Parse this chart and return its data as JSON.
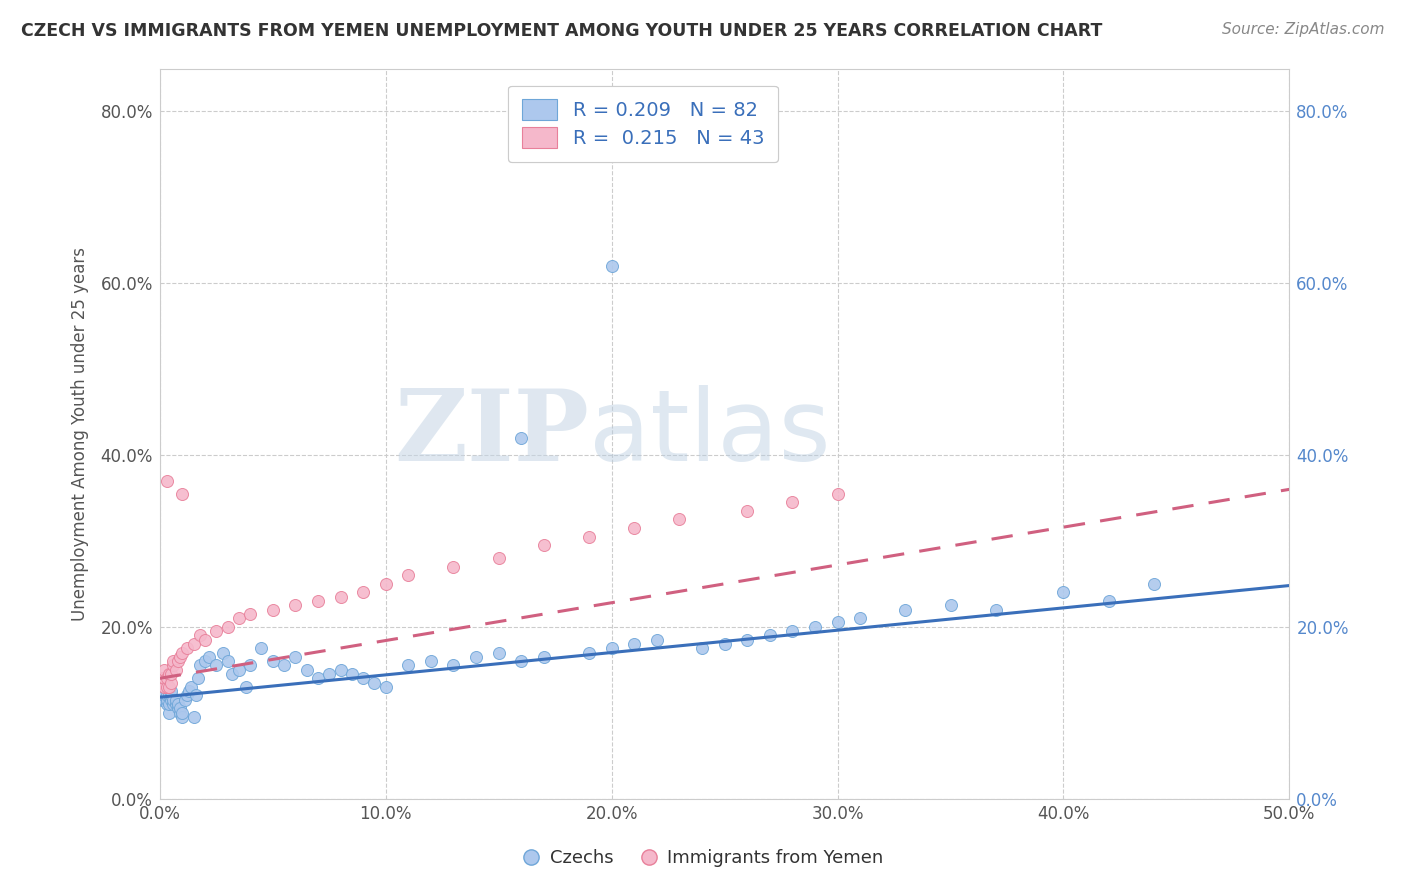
{
  "title": "CZECH VS IMMIGRANTS FROM YEMEN UNEMPLOYMENT AMONG YOUTH UNDER 25 YEARS CORRELATION CHART",
  "source": "Source: ZipAtlas.com",
  "ylabel": "Unemployment Among Youth under 25 years",
  "xlim": [
    0.0,
    0.5
  ],
  "ylim": [
    0.0,
    0.85
  ],
  "x_tick_vals": [
    0.0,
    0.1,
    0.2,
    0.3,
    0.4,
    0.5
  ],
  "x_tick_labels": [
    "0.0%",
    "10.0%",
    "20.0%",
    "30.0%",
    "40.0%",
    "50.0%"
  ],
  "y_tick_vals": [
    0.0,
    0.2,
    0.4,
    0.6,
    0.8
  ],
  "y_tick_labels": [
    "0.0%",
    "20.0%",
    "40.0%",
    "60.0%",
    "80.0%"
  ],
  "czech_color": "#adc8ed",
  "czech_edge": "#6ea6d8",
  "yemen_color": "#f5b8cb",
  "yemen_edge": "#e8809a",
  "trendline_czech_color": "#3a6fba",
  "trendline_yemen_color": "#d06080",
  "watermark_text": "ZIP",
  "watermark_text2": "atlas",
  "watermark_color": "#c8d8e8",
  "background_color": "#ffffff",
  "grid_color": "#cccccc",
  "right_axis_color": "#5588cc",
  "legend_color": "#3a6fba",
  "title_color": "#333333",
  "source_color": "#888888",
  "ylabel_color": "#555555",
  "bottom_label_color": "#333333",
  "czech_x": [
    0.001,
    0.001,
    0.001,
    0.002,
    0.002,
    0.002,
    0.002,
    0.003,
    0.003,
    0.003,
    0.004,
    0.004,
    0.004,
    0.005,
    0.005,
    0.005,
    0.006,
    0.006,
    0.007,
    0.007,
    0.008,
    0.008,
    0.009,
    0.009,
    0.01,
    0.01,
    0.011,
    0.012,
    0.013,
    0.014,
    0.015,
    0.016,
    0.017,
    0.018,
    0.02,
    0.022,
    0.025,
    0.028,
    0.03,
    0.032,
    0.035,
    0.038,
    0.04,
    0.045,
    0.05,
    0.055,
    0.06,
    0.065,
    0.07,
    0.075,
    0.08,
    0.085,
    0.09,
    0.095,
    0.1,
    0.11,
    0.12,
    0.13,
    0.14,
    0.15,
    0.16,
    0.17,
    0.19,
    0.2,
    0.21,
    0.22,
    0.24,
    0.25,
    0.26,
    0.27,
    0.28,
    0.29,
    0.3,
    0.31,
    0.33,
    0.35,
    0.37,
    0.4,
    0.42,
    0.44,
    0.2,
    0.16
  ],
  "czech_y": [
    0.115,
    0.125,
    0.13,
    0.115,
    0.12,
    0.125,
    0.13,
    0.11,
    0.115,
    0.12,
    0.1,
    0.11,
    0.12,
    0.115,
    0.12,
    0.125,
    0.11,
    0.115,
    0.11,
    0.115,
    0.105,
    0.11,
    0.1,
    0.105,
    0.095,
    0.1,
    0.115,
    0.12,
    0.125,
    0.13,
    0.095,
    0.12,
    0.14,
    0.155,
    0.16,
    0.165,
    0.155,
    0.17,
    0.16,
    0.145,
    0.15,
    0.13,
    0.155,
    0.175,
    0.16,
    0.155,
    0.165,
    0.15,
    0.14,
    0.145,
    0.15,
    0.145,
    0.14,
    0.135,
    0.13,
    0.155,
    0.16,
    0.155,
    0.165,
    0.17,
    0.16,
    0.165,
    0.17,
    0.175,
    0.18,
    0.185,
    0.175,
    0.18,
    0.185,
    0.19,
    0.195,
    0.2,
    0.205,
    0.21,
    0.22,
    0.225,
    0.22,
    0.24,
    0.23,
    0.25,
    0.62,
    0.42
  ],
  "yemen_x": [
    0.001,
    0.001,
    0.002,
    0.002,
    0.002,
    0.003,
    0.003,
    0.004,
    0.004,
    0.005,
    0.005,
    0.006,
    0.006,
    0.007,
    0.008,
    0.009,
    0.01,
    0.012,
    0.015,
    0.018,
    0.02,
    0.025,
    0.03,
    0.035,
    0.04,
    0.05,
    0.06,
    0.07,
    0.08,
    0.09,
    0.1,
    0.11,
    0.13,
    0.15,
    0.17,
    0.19,
    0.21,
    0.23,
    0.26,
    0.28,
    0.3,
    0.01,
    0.003
  ],
  "yemen_y": [
    0.135,
    0.14,
    0.13,
    0.14,
    0.15,
    0.13,
    0.14,
    0.13,
    0.145,
    0.135,
    0.145,
    0.155,
    0.16,
    0.15,
    0.16,
    0.165,
    0.17,
    0.175,
    0.18,
    0.19,
    0.185,
    0.195,
    0.2,
    0.21,
    0.215,
    0.22,
    0.225,
    0.23,
    0.235,
    0.24,
    0.25,
    0.26,
    0.27,
    0.28,
    0.295,
    0.305,
    0.315,
    0.325,
    0.335,
    0.345,
    0.355,
    0.355,
    0.37
  ],
  "czech_trendline": [
    0.118,
    0.248
  ],
  "yemen_trendline": [
    0.14,
    0.36
  ]
}
